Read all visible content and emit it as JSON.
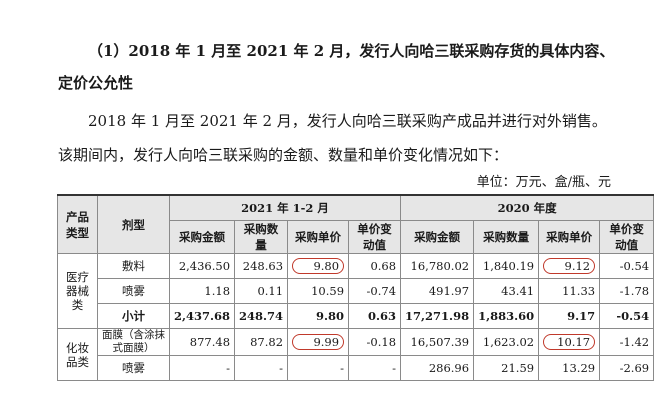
{
  "heading": {
    "line1": "（1）2018 年 1 月至 2021 年 2 月，发行人向哈三联采购存货的具体内容、",
    "line2": "定价公允性"
  },
  "paragraph": {
    "line1": "2018 年 1 月至 2021 年 2 月，发行人向哈三联采购产成品并进行对外销售。",
    "line2": "该期间内，发行人向哈三联采购的金额、数量和单价变化情况如下："
  },
  "unit_note": "单位：万元、盒/瓶、元",
  "table": {
    "headers": {
      "product_type": "产品类型",
      "dosage": "剂型",
      "period1": "2021 年 1-2 月",
      "period2": "2020 年度",
      "cols": [
        "采购金额",
        "采购数量",
        "采购单价",
        "单价变动值"
      ]
    },
    "groups": [
      {
        "category": "医疗器械类",
        "rows": [
          {
            "name": "敷料",
            "v": [
              "2,436.50",
              "248.63",
              "9.80",
              "0.68",
              "16,780.02",
              "1,840.19",
              "9.12",
              "-0.54"
            ]
          },
          {
            "name": "喷雾",
            "v": [
              "1.18",
              "0.11",
              "10.59",
              "-0.74",
              "491.97",
              "43.41",
              "11.33",
              "-1.78"
            ]
          },
          {
            "name": "小计",
            "v": [
              "2,437.68",
              "248.74",
              "9.80",
              "0.63",
              "17,271.98",
              "1,883.60",
              "9.17",
              "-0.54"
            ]
          }
        ]
      },
      {
        "category": "化妆品类",
        "rows": [
          {
            "name": "面膜（含涂抹式面膜）",
            "v": [
              "877.48",
              "87.82",
              "9.99",
              "-0.18",
              "16,507.39",
              "1,623.02",
              "10.17",
              "-1.42"
            ]
          },
          {
            "name": "喷雾",
            "v": [
              "-",
              "-",
              "-",
              "-",
              "286.96",
              "21.59",
              "13.29",
              "-2.69"
            ]
          }
        ]
      }
    ]
  }
}
